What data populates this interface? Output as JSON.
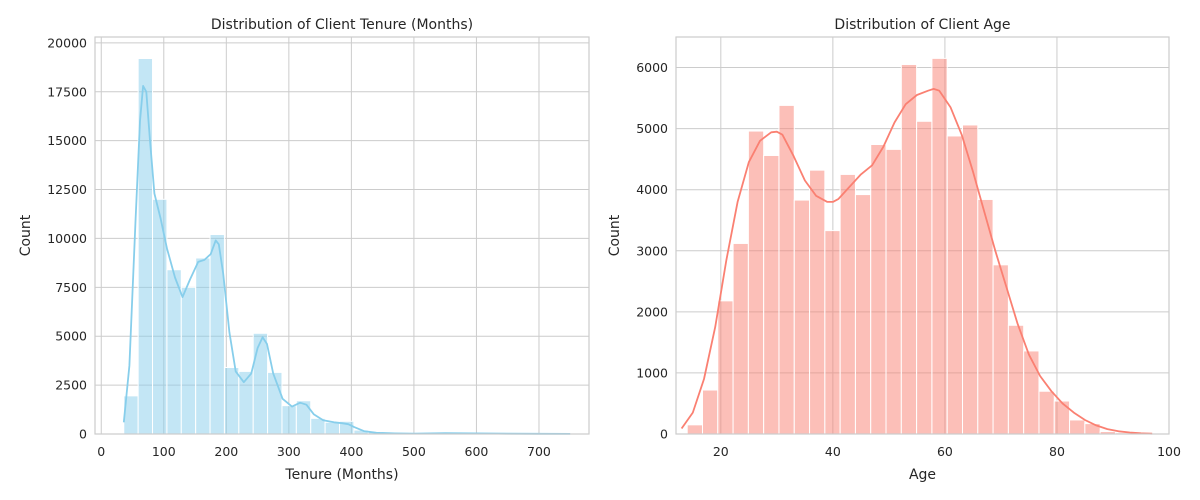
{
  "chart_data": [
    {
      "type": "bar",
      "subtype": "histogram-with-kde",
      "title": "Distribution of Client Tenure (Months)",
      "xlabel": "Tenure (Months)",
      "ylabel": "Count",
      "xlim": [
        -10,
        780
      ],
      "ylim": [
        0,
        20300
      ],
      "xticks": [
        0,
        100,
        200,
        300,
        400,
        500,
        600,
        700
      ],
      "yticks": [
        0,
        2500,
        5000,
        7500,
        10000,
        12500,
        15000,
        17500,
        20000
      ],
      "grid": true,
      "legend": "none",
      "color": "#87CEEB",
      "bin_edges": [
        36,
        59,
        82,
        105,
        128,
        151,
        174,
        197,
        220,
        243,
        266,
        289,
        312,
        335,
        358,
        381,
        404,
        427,
        450,
        473,
        496,
        519,
        542,
        565,
        588,
        611,
        634,
        657,
        680,
        703,
        726,
        749
      ],
      "values": [
        1950,
        19200,
        12000,
        8400,
        7500,
        9000,
        10200,
        3400,
        3200,
        5150,
        3150,
        1450,
        1700,
        800,
        600,
        650,
        200,
        100,
        60,
        40,
        30,
        20,
        15,
        25,
        40,
        30,
        20,
        15,
        10,
        10,
        5
      ],
      "kde": {
        "x": [
          36,
          45,
          55,
          62,
          67,
          72,
          78,
          85,
          95,
          105,
          118,
          130,
          142,
          155,
          165,
          175,
          183,
          188,
          195,
          205,
          215,
          228,
          240,
          250,
          258,
          265,
          275,
          290,
          305,
          318,
          328,
          340,
          355,
          372,
          385,
          395,
          405,
          420,
          440,
          470,
          500,
          550,
          600,
          650,
          700,
          750
        ],
        "y": [
          600,
          3500,
          11000,
          16000,
          17800,
          17500,
          15000,
          12300,
          11000,
          9500,
          8000,
          7000,
          7900,
          8800,
          8900,
          9200,
          9900,
          9700,
          8200,
          5200,
          3200,
          2650,
          3100,
          4400,
          4950,
          4600,
          3100,
          1800,
          1400,
          1600,
          1500,
          1000,
          700,
          600,
          550,
          500,
          350,
          150,
          60,
          30,
          20,
          40,
          30,
          15,
          8,
          5
        ]
      }
    },
    {
      "type": "bar",
      "subtype": "histogram-with-kde",
      "title": "Distribution of Client Age",
      "xlabel": "Age",
      "ylabel": "Count",
      "xlim": [
        12,
        100
      ],
      "ylim": [
        0,
        6500
      ],
      "xticks": [
        20,
        40,
        60,
        80,
        100
      ],
      "yticks": [
        0,
        1000,
        2000,
        3000,
        4000,
        5000,
        6000
      ],
      "grid": true,
      "legend": "none",
      "color": "#FA8072",
      "bin_edges": [
        14,
        16.73,
        19.46,
        22.19,
        24.92,
        27.65,
        30.38,
        33.11,
        35.84,
        38.57,
        41.3,
        44.03,
        46.76,
        49.49,
        52.22,
        54.95,
        57.68,
        60.41,
        63.14,
        65.87,
        68.6,
        71.33,
        74.06,
        76.79,
        79.52,
        82.25,
        84.98,
        87.71,
        90.44,
        93.17,
        95.9
      ],
      "values": [
        150,
        720,
        2180,
        3120,
        4960,
        4560,
        5380,
        3830,
        4320,
        3330,
        4250,
        3920,
        4740,
        4660,
        6050,
        5120,
        6150,
        4880,
        5060,
        3840,
        2770,
        1780,
        1360,
        700,
        540,
        230,
        170,
        40,
        20,
        10
      ],
      "kde": {
        "x": [
          13,
          15,
          17,
          19,
          21,
          23,
          25,
          27,
          29,
          30,
          31,
          33,
          35,
          37,
          39,
          40,
          41,
          43,
          45,
          47,
          49,
          51,
          53,
          55,
          57,
          58,
          59,
          61,
          63,
          65,
          67,
          69,
          71,
          73,
          75,
          77,
          79,
          81,
          83,
          85,
          87,
          89,
          91,
          93,
          95,
          97
        ],
        "y": [
          90,
          350,
          900,
          1750,
          2850,
          3800,
          4450,
          4800,
          4940,
          4950,
          4900,
          4550,
          4150,
          3900,
          3800,
          3800,
          3850,
          4050,
          4250,
          4400,
          4700,
          5100,
          5400,
          5550,
          5620,
          5650,
          5620,
          5350,
          4900,
          4300,
          3650,
          3000,
          2400,
          1800,
          1300,
          950,
          700,
          500,
          350,
          230,
          140,
          80,
          45,
          25,
          12,
          5
        ]
      }
    }
  ]
}
